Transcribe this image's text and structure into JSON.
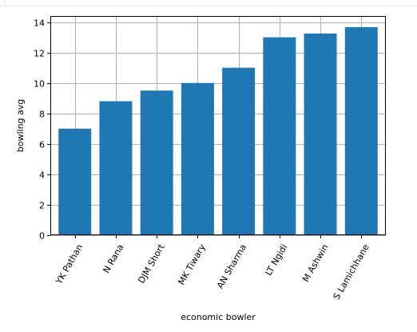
{
  "chart_data": {
    "type": "bar",
    "categories": [
      "YK Pathan",
      "N Rana",
      "DJM Short",
      "MK Tiwary",
      "AN Sharma",
      "LT Ngidi",
      "M Ashwin",
      "S Lamichhane"
    ],
    "values": [
      7.0,
      8.8,
      9.5,
      10.0,
      11.0,
      13.0,
      13.25,
      13.67
    ],
    "title": "",
    "xlabel": "economic bowler",
    "ylabel": "bowling avg",
    "ylim": [
      0,
      14.4
    ],
    "yticks": [
      "0",
      "2",
      "4",
      "6",
      "8",
      "10",
      "12",
      "14"
    ],
    "grid": true,
    "legend": "none",
    "colors": {
      "bar": "#1f77b4",
      "grid": "#b0b0b0",
      "axis": "#000000"
    }
  }
}
